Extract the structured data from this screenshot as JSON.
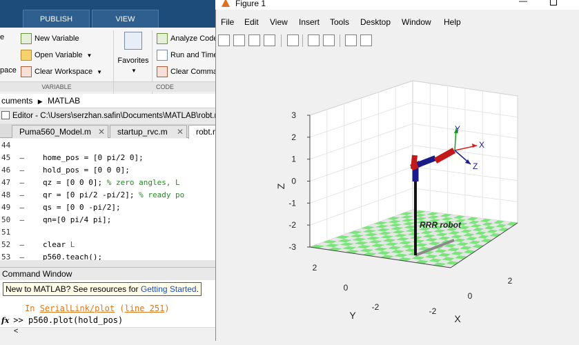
{
  "ribbon": {
    "tabs": [
      "PUBLISH",
      "VIEW"
    ],
    "variable_group": {
      "new_variable": "New Variable",
      "open_variable": "Open Variable",
      "clear_workspace": "Clear Workspace",
      "partial_left_top": "e",
      "partial_left_bottom": "pace",
      "section": "VARIABLE"
    },
    "favorites": "Favorites",
    "code_group": {
      "analyze_code": "Analyze Code",
      "run_and_time": "Run and Time",
      "clear_commands": "Clear Commands",
      "section": "CODE"
    }
  },
  "address": {
    "crumb1": "cuments",
    "crumb2": "MATLAB"
  },
  "editor": {
    "title": "Editor - C:\\Users\\serzhan.safin\\Documents\\MATLAB\\robt.m",
    "tabs": [
      "Puma560_Model.m",
      "startup_rvc.m",
      "robt.m"
    ],
    "lines": [
      {
        "num": "44",
        "dash": "",
        "segments": []
      },
      {
        "num": "45",
        "dash": "–",
        "segments": [
          {
            "t": "home_pos = [0 pi/2 0];",
            "c": "n"
          }
        ]
      },
      {
        "num": "46",
        "dash": "–",
        "segments": [
          {
            "t": "hold_pos = [0 0 0];",
            "c": "n"
          }
        ]
      },
      {
        "num": "47",
        "dash": "–",
        "segments": [
          {
            "t": "qz = [0 0 0]; ",
            "c": "n"
          },
          {
            "t": "% zero angles, L",
            "c": "cm"
          }
        ]
      },
      {
        "num": "48",
        "dash": "–",
        "segments": [
          {
            "t": "qr = [0 pi/2 -pi/2]; ",
            "c": "n"
          },
          {
            "t": "% ready po",
            "c": "cm"
          }
        ]
      },
      {
        "num": "49",
        "dash": "–",
        "segments": [
          {
            "t": "qs = [0 0 -pi/2];",
            "c": "n"
          }
        ]
      },
      {
        "num": "50",
        "dash": "–",
        "segments": [
          {
            "t": "qn=[0 pi/4 pi];",
            "c": "n"
          }
        ]
      },
      {
        "num": "51",
        "dash": "",
        "segments": []
      },
      {
        "num": "52",
        "dash": "–",
        "segments": [
          {
            "t": "clear ",
            "c": "n"
          },
          {
            "t": "L",
            "c": "st"
          }
        ]
      },
      {
        "num": "53",
        "dash": "–",
        "segments": [
          {
            "t": "p560.teach();",
            "c": "n"
          }
        ]
      }
    ]
  },
  "command_window": {
    "header": "Command Window",
    "tip_prefix": "New to MATLAB? See resources for ",
    "tip_link": "Getting Started",
    "tip_suffix": ".",
    "error_prefix": "In ",
    "error_func": "SerialLink/plot",
    "error_line": "line 251",
    "prompt": ">> ",
    "command": "p560.plot(hold_pos)",
    "fx": "fx"
  },
  "figure": {
    "title": "Figure 1",
    "menu": [
      "File",
      "Edit",
      "View",
      "Insert",
      "Tools",
      "Desktop",
      "Window",
      "Help"
    ],
    "toolbar_icons": [
      "new-figure-icon",
      "open-file-icon",
      "save-icon",
      "print-icon",
      "link-plot-icon",
      "colorbar-icon",
      "legend-icon",
      "pointer-icon",
      "property-editor-icon"
    ]
  },
  "chart_data": {
    "type": "3d-plot",
    "title": "",
    "annotation": "RRR robot",
    "xlabel": "X",
    "ylabel": "Y",
    "zlabel": "Z",
    "x_ticks": [
      "-2",
      "0",
      "2"
    ],
    "y_ticks": [
      "-2",
      "0",
      "2"
    ],
    "z_ticks": [
      "3",
      "2",
      "1",
      "0",
      "-1",
      "-2",
      "-3"
    ],
    "frame_axes": [
      "X",
      "Y",
      "Z"
    ],
    "colors": {
      "floor_a": "#7be57b",
      "floor_b": "#e6e6e6",
      "links": "#c21a1a",
      "joints": "#1a1a8a",
      "x_axis": "#d62020",
      "y_axis": "#16a016",
      "z_axis": "#1a1a9a",
      "shadow": "#8a8a8a"
    }
  }
}
